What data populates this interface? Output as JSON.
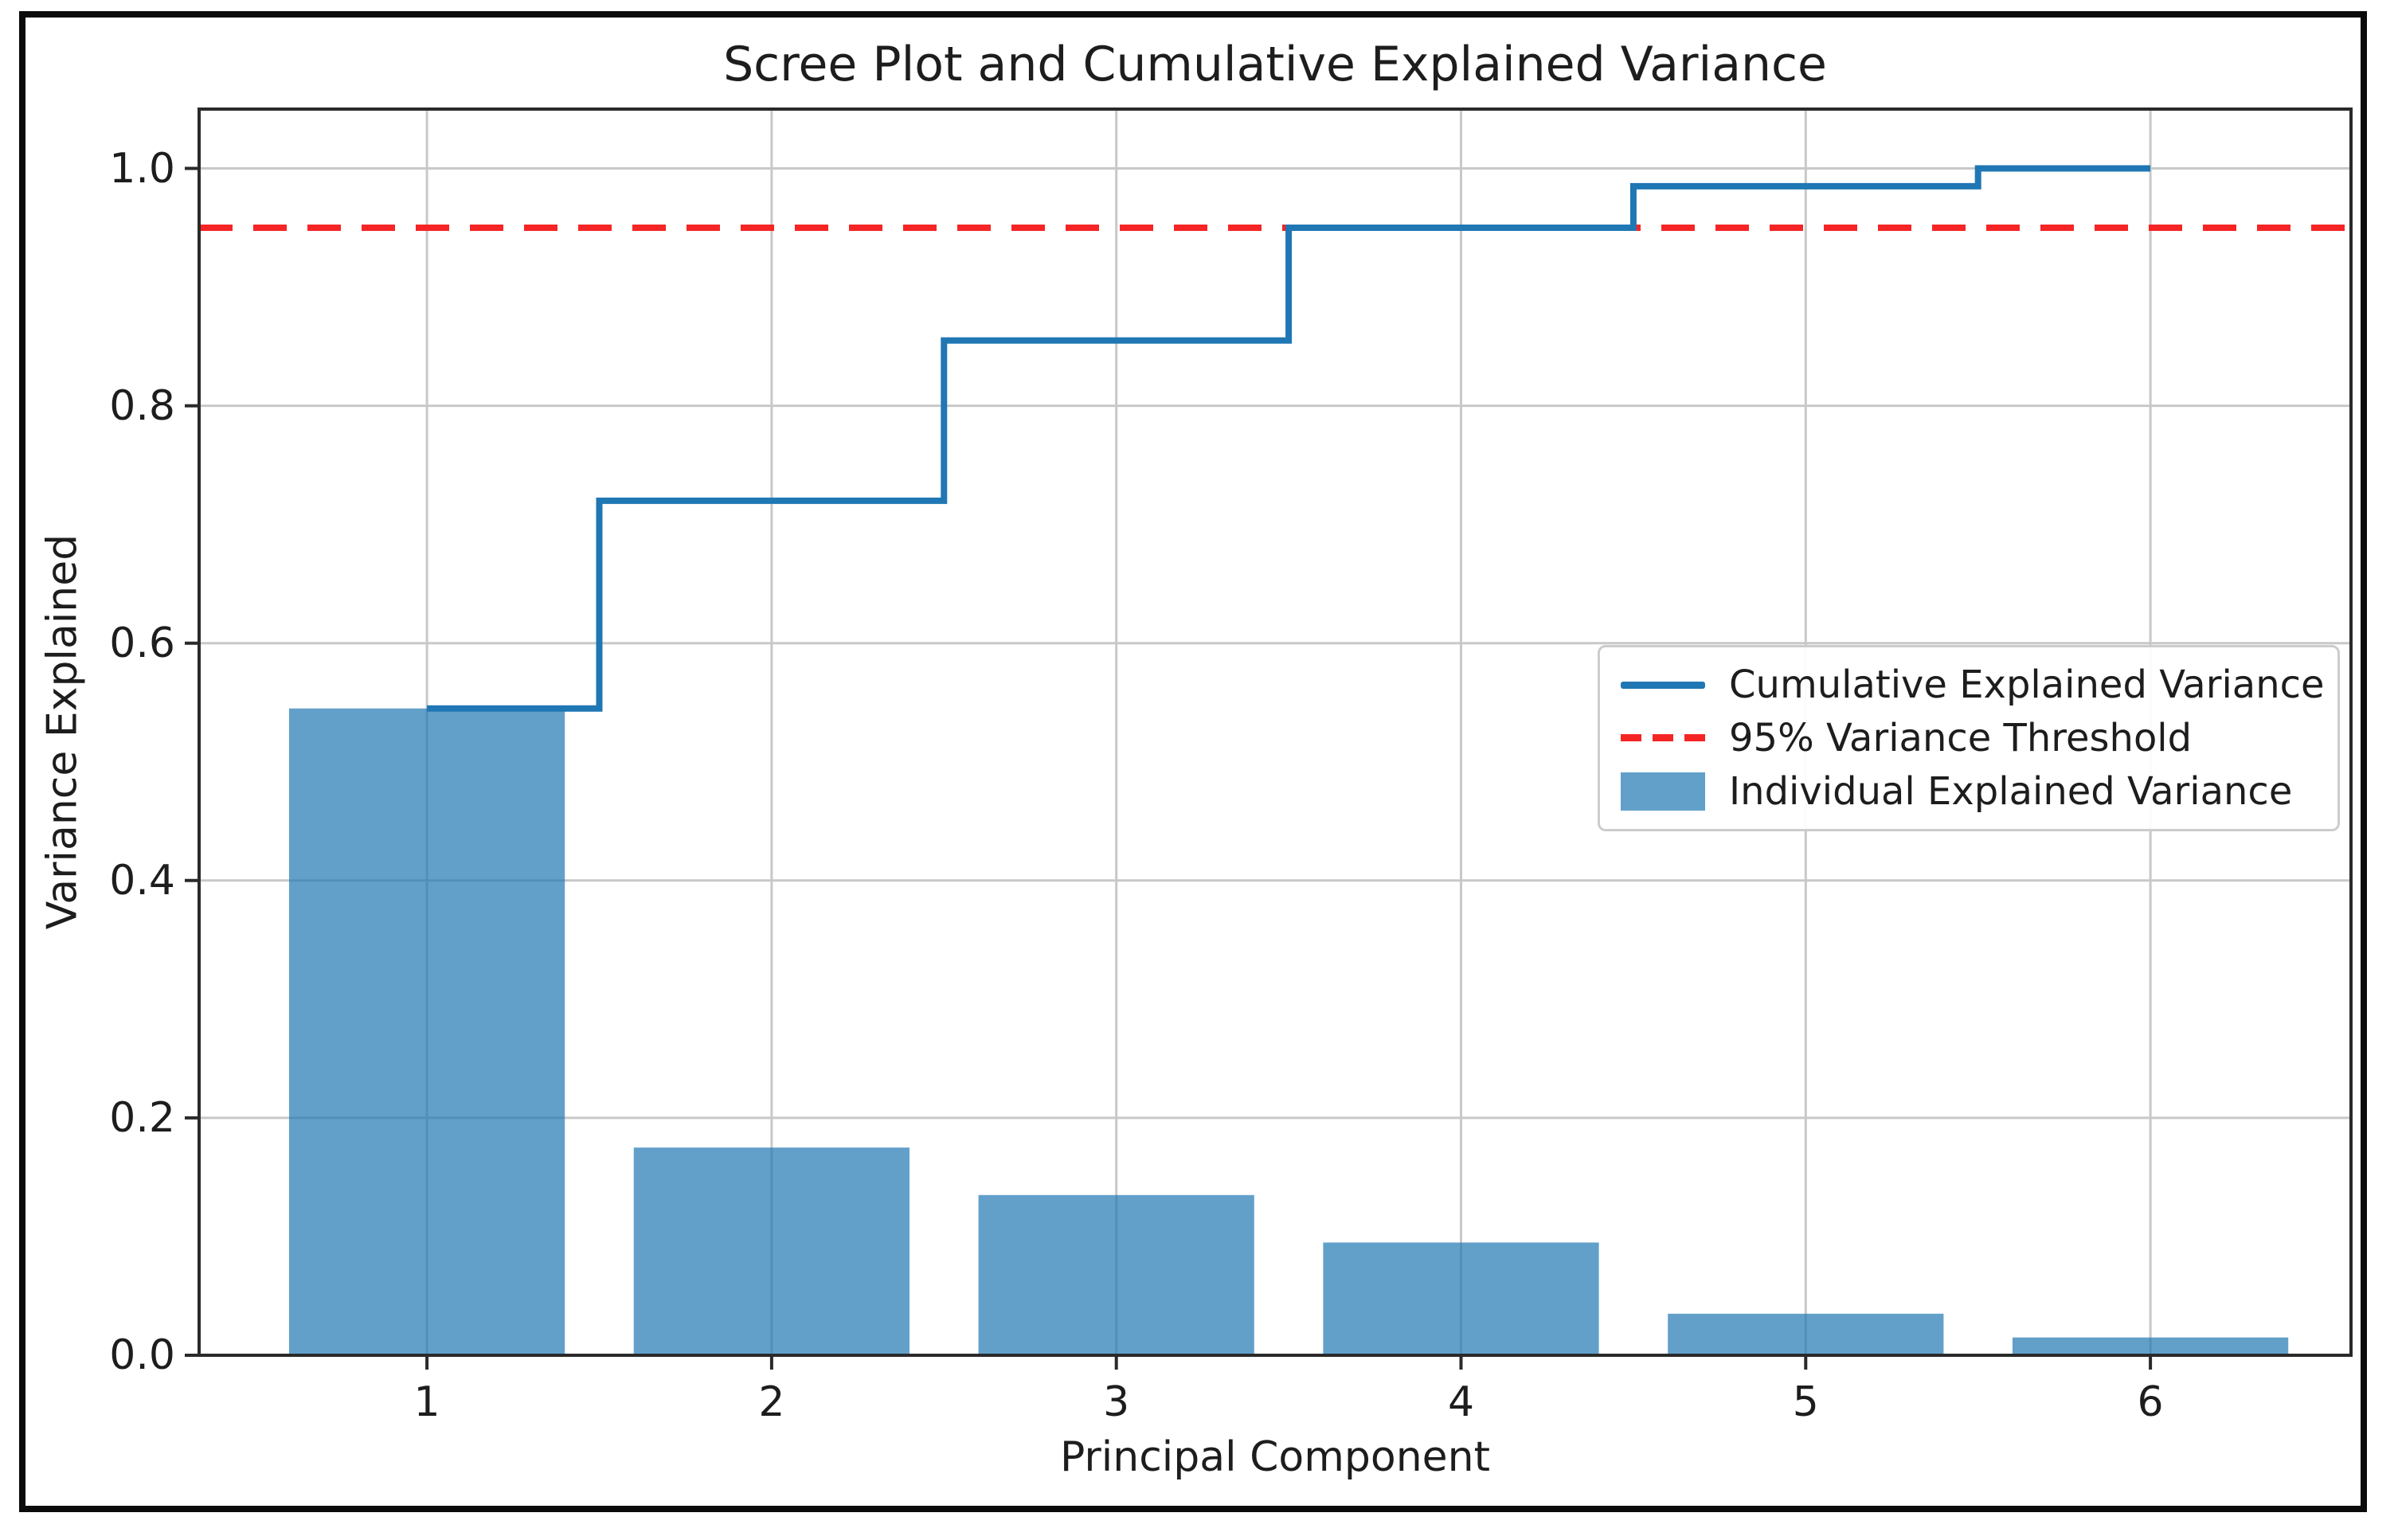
{
  "figure": {
    "background": "#ffffff",
    "frame_color": "#0b0b0b"
  },
  "chart_data": {
    "type": "bar",
    "title": "Scree Plot and Cumulative Explained Variance",
    "xlabel": "Principal Component",
    "ylabel": "Variance Explained",
    "categories": [
      1,
      2,
      3,
      4,
      5,
      6
    ],
    "series": [
      {
        "name": "Individual Explained Variance",
        "type": "bar",
        "values": [
          0.545,
          0.175,
          0.135,
          0.095,
          0.035,
          0.015
        ],
        "color": "rgba(31,119,180,0.7)",
        "bar_width_units": 0.8
      },
      {
        "name": "Cumulative Explained Variance",
        "type": "step",
        "step_where": "mid",
        "values": [
          0.545,
          0.72,
          0.855,
          0.95,
          0.985,
          1.0
        ],
        "color": "#1f77b4",
        "line_width": 8
      },
      {
        "name": "95% Variance Threshold",
        "type": "hline",
        "value": 0.95,
        "color": "#f52525",
        "style": "dashed",
        "line_width": 8
      }
    ],
    "xlim": [
      0.339,
      6.582
    ],
    "ylim": [
      0,
      1.05
    ],
    "xticks": [
      "1",
      "2",
      "3",
      "4",
      "5",
      "6"
    ],
    "xtick_values": [
      1,
      2,
      3,
      4,
      5,
      6
    ],
    "yticks": [
      "0.0",
      "0.2",
      "0.4",
      "0.6",
      "0.8",
      "1.0"
    ],
    "ytick_values": [
      0,
      0.2,
      0.4,
      0.6,
      0.8,
      1.0
    ],
    "grid": true,
    "grid_color": "#c8c8c8",
    "spine_color": "#2a2a2a",
    "legend_position": "center right"
  },
  "legend": {
    "items": [
      {
        "label": "Cumulative Explained Variance",
        "swatch": "line-icon"
      },
      {
        "label": "95% Variance Threshold",
        "swatch": "dashed-line-icon"
      },
      {
        "label": "Individual Explained Variance",
        "swatch": "patch-icon"
      }
    ]
  },
  "colors": {
    "cumulative_line": "#1f77b4",
    "threshold_line": "#f52525",
    "bar_fill": "rgba(31,119,180,0.7)"
  }
}
